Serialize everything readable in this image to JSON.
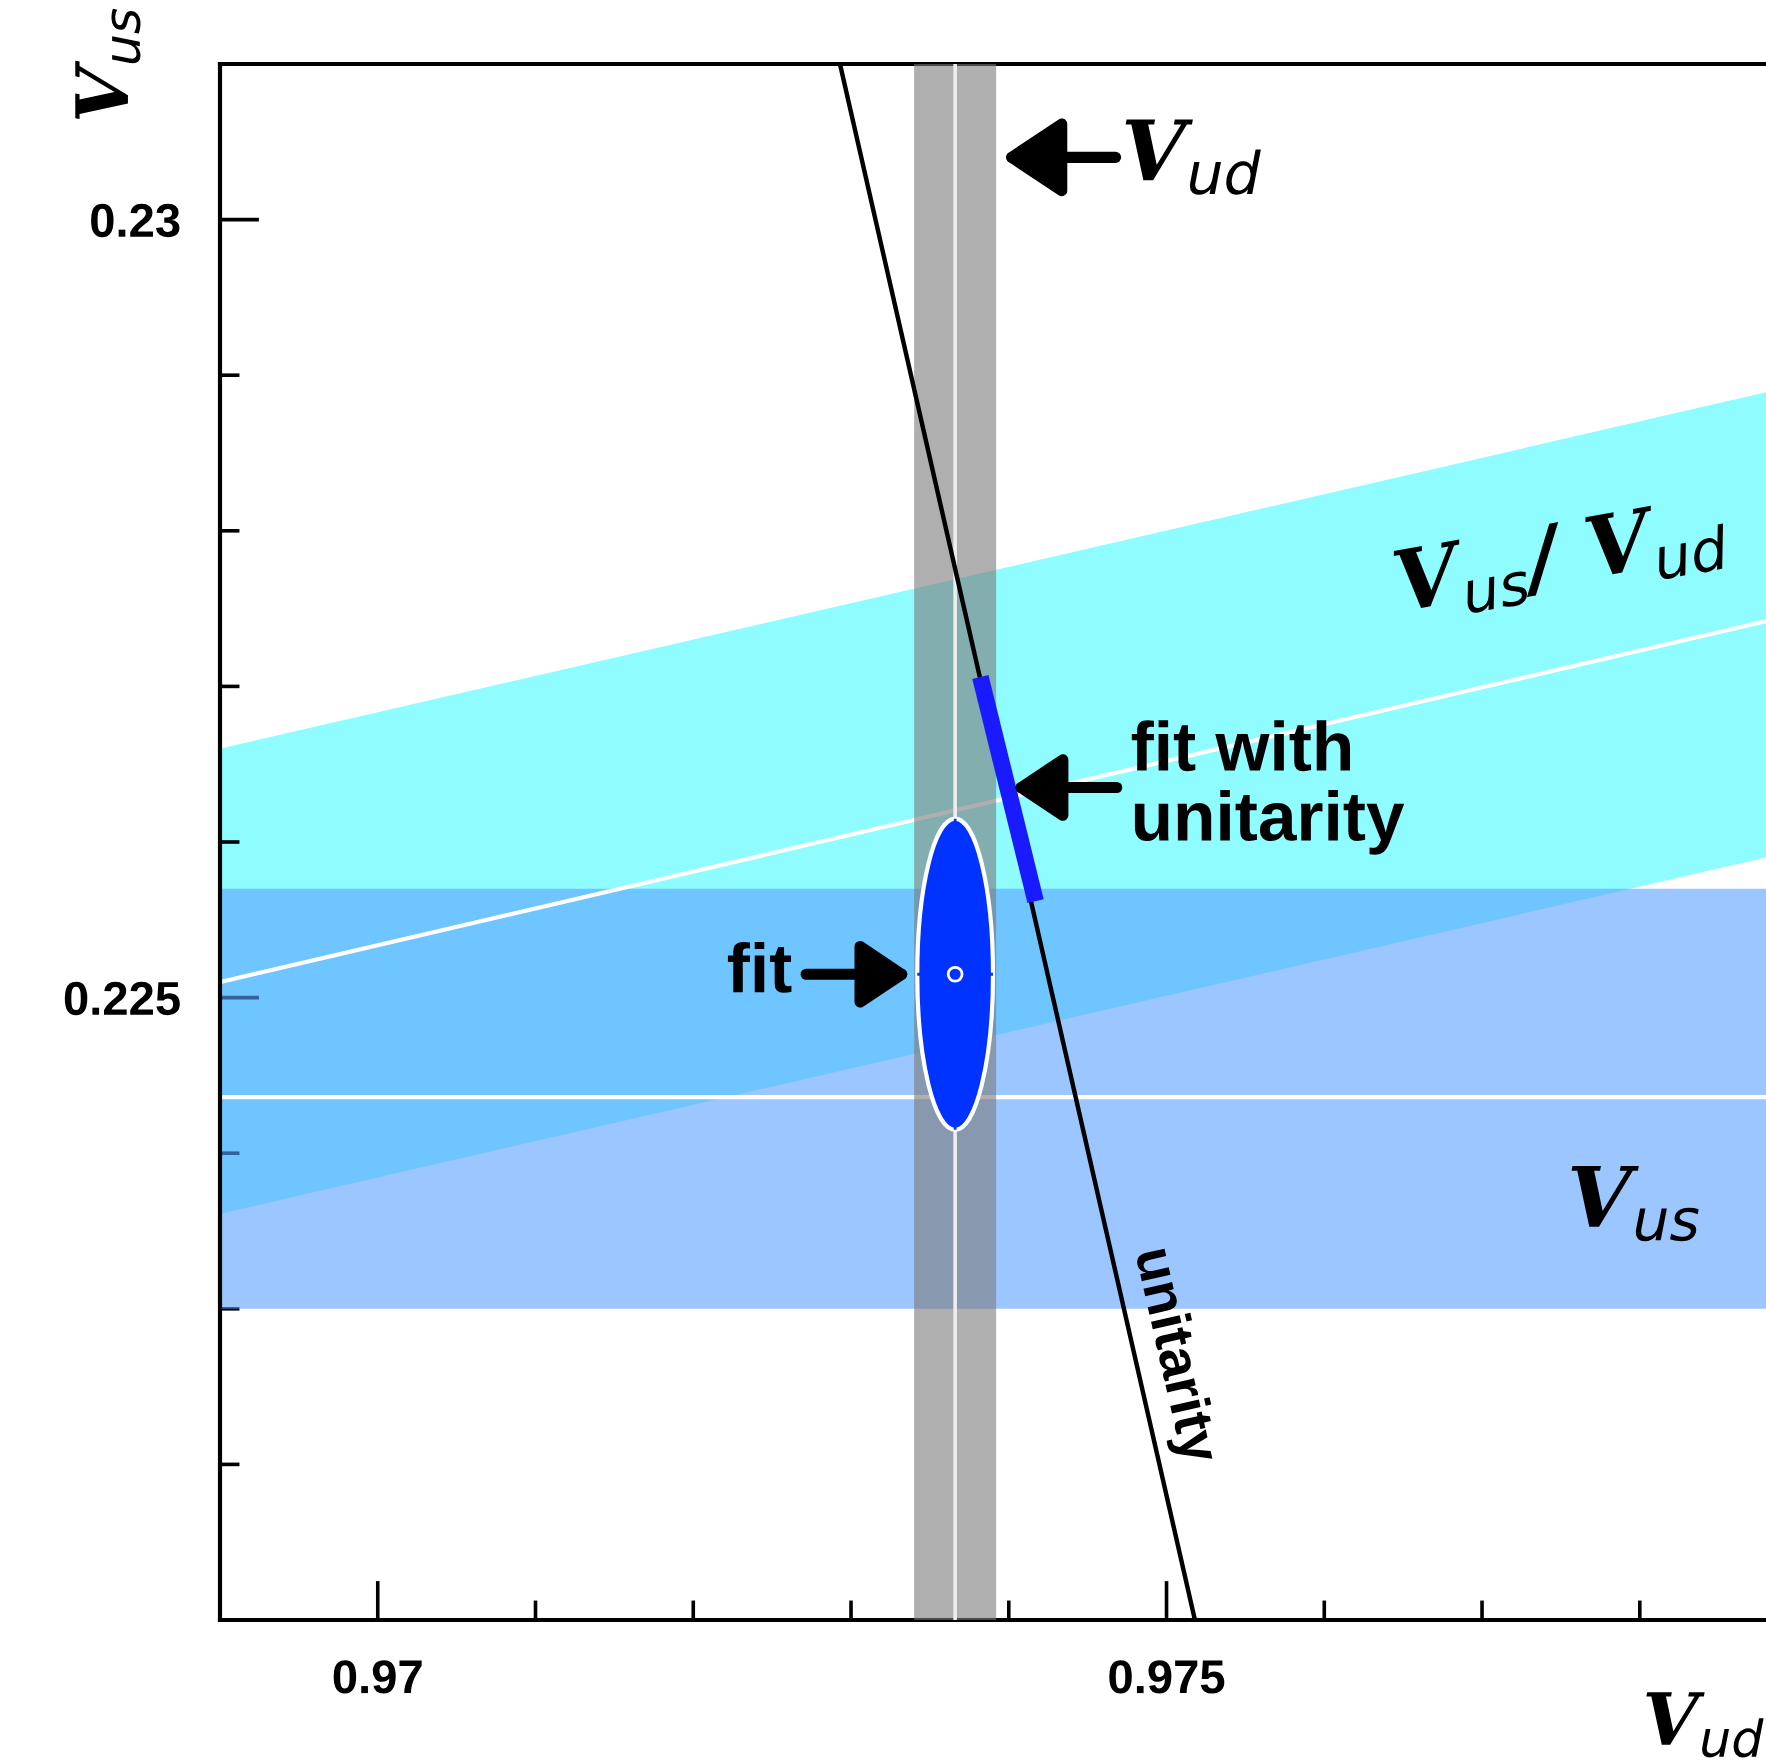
{
  "chart_data": {
    "type": "line",
    "xlabel": "V$_{ud}$",
    "ylabel": "V$_{us}$",
    "xlim": [
      0.969,
      0.9788
    ],
    "ylim": [
      0.221,
      0.231
    ],
    "xticks": [
      {
        "value": 0.969,
        "label": null
      },
      0.97,
      {
        "value": 0.971,
        "label": null
      },
      {
        "value": 0.972,
        "label": null
      },
      {
        "value": 0.973,
        "label": null
      },
      {
        "value": 0.974,
        "label": null
      },
      0.975,
      {
        "value": 0.976,
        "label": null
      },
      {
        "value": 0.977,
        "label": null
      },
      {
        "value": 0.978,
        "label": null
      }
    ],
    "yticks": [
      {
        "value": 0.221,
        "label": null
      },
      {
        "value": 0.222,
        "label": null
      },
      {
        "value": 0.223,
        "label": null
      },
      {
        "value": 0.224,
        "label": null
      },
      0.225,
      {
        "value": 0.226,
        "label": null
      },
      {
        "value": 0.227,
        "label": null
      },
      {
        "value": 0.228,
        "label": null
      },
      {
        "value": 0.229,
        "label": null
      },
      0.23
    ],
    "grid": false,
    "legend": false,
    "series": [
      {
        "type": "line",
        "name": "V$_{us}$/ V$_{ud}$",
        "color": "#ffffff",
        "colors": [
          "#8ffcff",
          "#8ffcff"
        ],
        "x": [
          0.969,
          0.9788
        ],
        "values": [
          0.2251,
          0.22742
        ],
        "lower": [
          0.22361,
          0.2259
        ],
        "upper": [
          0.2266,
          0.22889
        ]
      },
      {
        "name": "unitarity",
        "color": "#000000",
        "x": [
          0.97293,
          0.97518
        ],
        "values": [
          0.231,
          0.221
        ]
      },
      {
        "type": "scatter",
        "color": "#0033ff",
        "x": [
          0.97366
        ],
        "values": [
          0.22515
        ],
        "xerrors": [
          0.00024
        ],
        "errors": [
          0.001
        ]
      },
      {
        "type": "line",
        "color": "#1a1aff",
        "x": [
          0.97382,
          0.97417
        ],
        "values": [
          0.22706,
          0.22562
        ]
      }
    ],
    "bands": [
      {
        "axis": "y",
        "from": 0.223,
        "to": 0.2257,
        "label": "V$_{us}$",
        "color": "#5aa0ff"
      },
      {
        "axis": "x",
        "from": 0.9734,
        "to": 0.97392,
        "label": "V$_{ud}$",
        "color": "#7a7a7a"
      }
    ],
    "ref_lines": [
      {
        "axis": "y",
        "value": 0.22436,
        "color": "#ffffff"
      },
      {
        "axis": "x",
        "value": 0.97366,
        "color": "#eeeeee"
      }
    ],
    "annotations": [
      {
        "text": "fit",
        "x": 0.97342,
        "y": 0.22515
      },
      {
        "text": "fit with\nunitarity",
        "x": 0.97398,
        "y": 0.22635
      }
    ]
  }
}
